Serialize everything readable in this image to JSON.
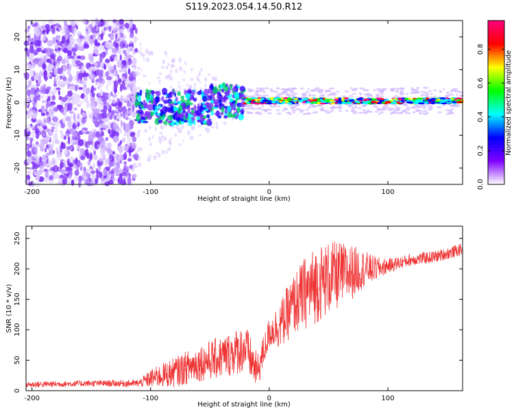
{
  "title": "S119.2023.054.14.50.R12",
  "chart_data": [
    {
      "type": "heatmap",
      "ylabel": "Frequency (Hz)",
      "xlabel": "Height of straight line (km)",
      "xlim": [
        -205,
        163
      ],
      "ylim": [
        -25,
        25
      ],
      "xticks": [
        -200,
        -100,
        0,
        100
      ],
      "yticks": [
        -20,
        -10,
        0,
        10,
        20
      ],
      "colorbar": {
        "label": "Normalized spectral amplitude",
        "range": [
          0,
          0.97
        ],
        "ticks": [
          "0.0",
          "0.2",
          "0.4",
          "0.6",
          "0.8"
        ],
        "colors": [
          "#ffffff",
          "#8000ff",
          "#0000ff",
          "#00ffff",
          "#00ff00",
          "#ffff00",
          "#ff0000",
          "#ff0080"
        ]
      },
      "description_features": {
        "noise_region_x": [
          -205,
          -112
        ],
        "transition_region_x": [
          -112,
          -20
        ],
        "line_region_x": [
          -20,
          163
        ],
        "line_frequency_hz": 0.5
      }
    },
    {
      "type": "line",
      "ylabel": "SNR (10 * v/v)",
      "xlabel": "Height of straight line (km)",
      "xlim": [
        -205,
        163
      ],
      "ylim": [
        0,
        270
      ],
      "xticks": [
        -200,
        -100,
        0,
        100
      ],
      "yticks": [
        0,
        50,
        100,
        150,
        200,
        250
      ],
      "color": "#ee3333",
      "series": [
        {
          "x": [
            -205,
            -150,
            -110,
            -100,
            -90,
            -80,
            -60,
            -40,
            -20,
            -10,
            0,
            10,
            20,
            30,
            40,
            50,
            60,
            70,
            80,
            90,
            100,
            120,
            140,
            163
          ],
          "values": [
            10,
            12,
            12,
            20,
            25,
            30,
            45,
            55,
            70,
            30,
            95,
            110,
            140,
            160,
            175,
            185,
            190,
            195,
            200,
            200,
            205,
            215,
            220,
            232
          ],
          "spread": [
            5,
            5,
            6,
            15,
            20,
            25,
            30,
            35,
            40,
            30,
            25,
            40,
            50,
            60,
            65,
            60,
            55,
            45,
            30,
            20,
            12,
            10,
            10,
            10
          ]
        }
      ]
    }
  ]
}
